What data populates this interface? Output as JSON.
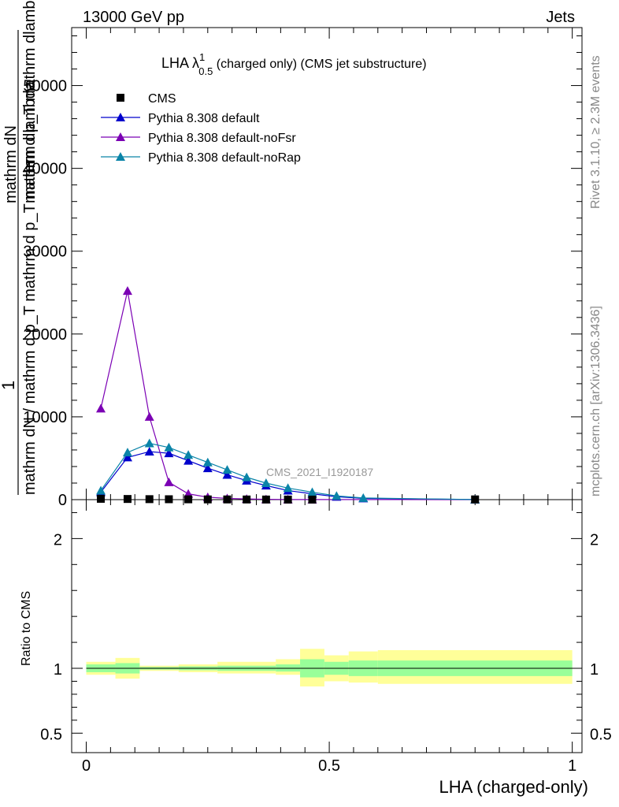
{
  "header": {
    "left_label": "13000 GeV pp",
    "right_label": "Jets"
  },
  "side_labels": {
    "rivet": "Rivet 3.1.10, ≥ 2.3M events",
    "mcplots": "mcplots.cern.ch [arXiv:1306.3436]"
  },
  "chart_data": {
    "type": "line",
    "title": {
      "prefix": "LHA λ",
      "sup": "1",
      "sub": "0.5",
      "suffix": " (charged only) (CMS jet substructure)"
    },
    "analysis_label": "CMS_2021_I1920187",
    "ylabel": {
      "top_fraction": "mathrm dN",
      "top_line2": "mathrm d p_T mathrm dlambda",
      "full_numerator": "1",
      "full_denominator": "mathrm dN / mathrm d p_T mathrm d p_T mathrm dlambda"
    },
    "xlabel": "LHA (charged-only)",
    "xlim": [
      -0.03,
      1.02
    ],
    "ylim": [
      0,
      57000
    ],
    "main_yticks": [
      {
        "value": 0,
        "label": "0"
      },
      {
        "value": 10000,
        "label": "10000"
      },
      {
        "value": 20000,
        "label": "20000"
      },
      {
        "value": 30000,
        "label": "30000"
      },
      {
        "value": 40000,
        "label": "40000"
      },
      {
        "value": 50000,
        "label": "50000"
      }
    ],
    "xticks": [
      {
        "value": 0,
        "label": "0"
      },
      {
        "value": 0.5,
        "label": "0.5"
      },
      {
        "value": 1,
        "label": "1"
      }
    ],
    "ratio": {
      "ylabel": "Ratio to CMS",
      "ylim": [
        0.35,
        2.3
      ],
      "yticks": [
        {
          "value": 0.5,
          "label": "0.5"
        },
        {
          "value": 1,
          "label": "1"
        },
        {
          "value": 2,
          "label": "2"
        }
      ],
      "bands": [
        {
          "x0": 0.0,
          "x1": 0.06,
          "inner": [
            0.97,
            1.03
          ],
          "outer": [
            0.95,
            1.05
          ]
        },
        {
          "x0": 0.06,
          "x1": 0.11,
          "inner": [
            0.96,
            1.04
          ],
          "outer": [
            0.92,
            1.08
          ]
        },
        {
          "x0": 0.11,
          "x1": 0.19,
          "inner": [
            0.99,
            1.01
          ],
          "outer": [
            0.98,
            1.02
          ]
        },
        {
          "x0": 0.19,
          "x1": 0.27,
          "inner": [
            0.985,
            1.015
          ],
          "outer": [
            0.97,
            1.03
          ]
        },
        {
          "x0": 0.27,
          "x1": 0.39,
          "inner": [
            0.98,
            1.02
          ],
          "outer": [
            0.96,
            1.05
          ]
        },
        {
          "x0": 0.39,
          "x1": 0.44,
          "inner": [
            0.975,
            1.03
          ],
          "outer": [
            0.95,
            1.07
          ]
        },
        {
          "x0": 0.44,
          "x1": 0.49,
          "inner": [
            0.93,
            1.07
          ],
          "outer": [
            0.86,
            1.15
          ]
        },
        {
          "x0": 0.49,
          "x1": 0.54,
          "inner": [
            0.95,
            1.05
          ],
          "outer": [
            0.9,
            1.1
          ]
        },
        {
          "x0": 0.54,
          "x1": 0.6,
          "inner": [
            0.94,
            1.06
          ],
          "outer": [
            0.89,
            1.13
          ]
        },
        {
          "x0": 0.6,
          "x1": 1.0,
          "inner": [
            0.94,
            1.06
          ],
          "outer": [
            0.88,
            1.14
          ]
        }
      ]
    },
    "series": [
      {
        "name": "CMS",
        "color": "#000000",
        "marker": "square",
        "x": [
          0.03,
          0.085,
          0.13,
          0.17,
          0.21,
          0.25,
          0.29,
          0.33,
          0.37,
          0.415,
          0.465,
          0.8
        ],
        "values": [
          100,
          80,
          60,
          50,
          40,
          30,
          25,
          20,
          15,
          10,
          8,
          30
        ]
      },
      {
        "name": "Pythia 8.308 default",
        "color": "#0000cc",
        "marker": "triangle",
        "x": [
          0.03,
          0.085,
          0.13,
          0.17,
          0.21,
          0.25,
          0.29,
          0.33,
          0.37,
          0.415,
          0.465,
          0.515,
          0.57,
          0.8
        ],
        "values": [
          900,
          5100,
          5800,
          5600,
          4700,
          3800,
          3000,
          2300,
          1700,
          1100,
          700,
          350,
          150,
          10
        ]
      },
      {
        "name": "Pythia 8.308 default-noFsr",
        "color": "#7b00b4",
        "marker": "triangle",
        "x": [
          0.03,
          0.085,
          0.13,
          0.17,
          0.21,
          0.25,
          0.29,
          0.33,
          0.37,
          0.415,
          0.465,
          0.8
        ],
        "values": [
          11000,
          25200,
          10000,
          2100,
          700,
          300,
          150,
          80,
          40,
          20,
          10,
          0
        ]
      },
      {
        "name": "Pythia 8.308 default-noRap",
        "color": "#0a84a8",
        "marker": "triangle",
        "x": [
          0.03,
          0.085,
          0.13,
          0.17,
          0.21,
          0.25,
          0.29,
          0.33,
          0.37,
          0.415,
          0.465,
          0.515,
          0.57,
          0.8
        ],
        "values": [
          1100,
          5700,
          6800,
          6300,
          5400,
          4500,
          3600,
          2700,
          2000,
          1400,
          900,
          450,
          200,
          10
        ]
      }
    ]
  }
}
